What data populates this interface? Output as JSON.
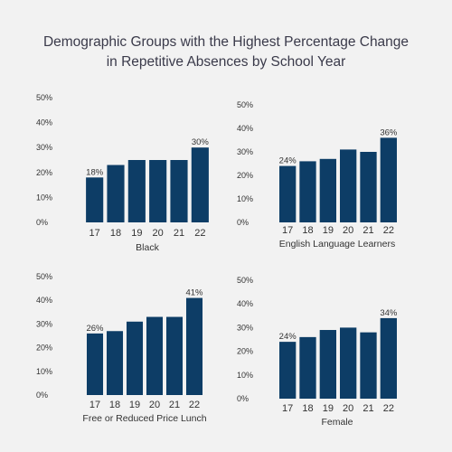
{
  "title_line1": "Demographic Groups with the Highest Percentage Change",
  "title_line2": "in Repetitive Absences by School Year",
  "bar_color": "#0d3d66",
  "chart_data": [
    {
      "type": "bar",
      "xlabel": "Black",
      "categories": [
        "17",
        "18",
        "19",
        "20",
        "21",
        "22"
      ],
      "values": [
        18,
        23,
        25,
        25,
        25,
        30
      ],
      "data_labels": {
        "0": "18%",
        "5": "30%"
      },
      "yticks": [
        "0%",
        "10%",
        "20%",
        "30%",
        "40%",
        "50%"
      ],
      "ylim": [
        0,
        50
      ]
    },
    {
      "type": "bar",
      "xlabel": "English Language Learners",
      "categories": [
        "17",
        "18",
        "19",
        "20",
        "21",
        "22"
      ],
      "values": [
        24,
        26,
        27,
        31,
        30,
        36
      ],
      "data_labels": {
        "0": "24%",
        "5": "36%"
      },
      "yticks": [
        "0%",
        "10%",
        "20%",
        "30%",
        "40%",
        "50%"
      ],
      "ylim": [
        0,
        50
      ]
    },
    {
      "type": "bar",
      "xlabel": "Free or Reduced Price Lunch",
      "categories": [
        "17",
        "18",
        "19",
        "20",
        "21",
        "22"
      ],
      "values": [
        26,
        27,
        31,
        33,
        33,
        41
      ],
      "data_labels": {
        "0": "26%",
        "5": "41%"
      },
      "yticks": [
        "0%",
        "10%",
        "20%",
        "30%",
        "40%",
        "50%"
      ],
      "ylim": [
        0,
        50
      ]
    },
    {
      "type": "bar",
      "xlabel": "Female",
      "categories": [
        "17",
        "18",
        "19",
        "20",
        "21",
        "22"
      ],
      "values": [
        24,
        26,
        29,
        30,
        28,
        34
      ],
      "data_labels": {
        "0": "24%",
        "5": "34%"
      },
      "yticks": [
        "0%",
        "10%",
        "20%",
        "30%",
        "40%",
        "50%"
      ],
      "ylim": [
        0,
        50
      ]
    }
  ]
}
